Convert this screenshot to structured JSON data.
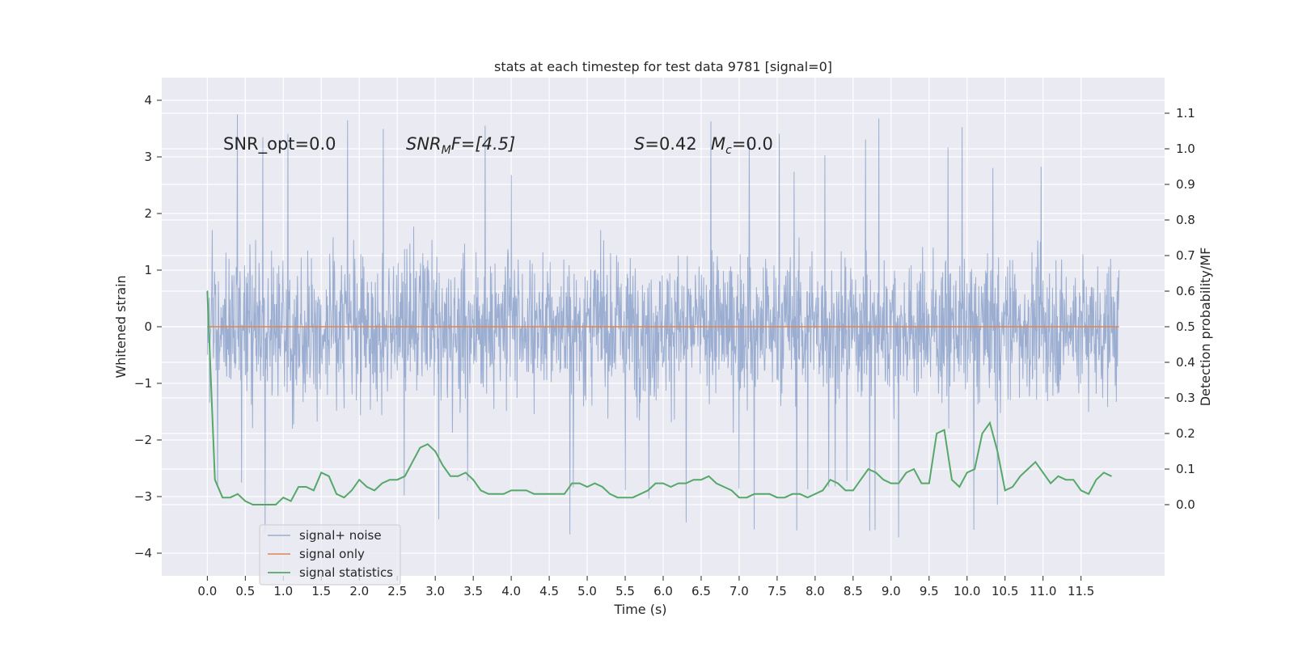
{
  "chart_data": {
    "type": "line",
    "title": "stats at each timestep for test data 9781 [signal=0]",
    "xlabel": "Time (s)",
    "ylabel": "Whitened strain",
    "ylabel_right": "Detection probability/MF",
    "xlim": [
      -0.6,
      12.6
    ],
    "ylim": [
      -4.4,
      4.4
    ],
    "ylim_right": [
      -0.2,
      1.2
    ],
    "grid": true,
    "legend_position": "lower-left",
    "x_ticks": [
      "0.0",
      "0.5",
      "1.0",
      "1.5",
      "2.0",
      "2.5",
      "3.0",
      "3.5",
      "4.0",
      "4.5",
      "5.0",
      "5.5",
      "6.0",
      "6.5",
      "7.0",
      "7.5",
      "8.0",
      "8.5",
      "9.0",
      "9.5",
      "10.0",
      "10.5",
      "11.0",
      "11.5"
    ],
    "y_ticks": [
      "4",
      "3",
      "2",
      "1",
      "0",
      "−1",
      "−2",
      "−3",
      "−4"
    ],
    "y_ticks_right": [
      "1.1",
      "1.0",
      "0.9",
      "0.8",
      "0.7",
      "0.6",
      "0.5",
      "0.4",
      "0.3",
      "0.2",
      "0.1",
      "0.0"
    ],
    "annotations": {
      "snr_opt": "SNR_opt=0.0",
      "snr_mf": "SNR",
      "snr_mf_sub": "M",
      "snr_mf_rest": "F=[4.5]",
      "stat_s": "S",
      "stat_s_value": "=0.42",
      "mc": "M",
      "mc_sub": "c",
      "mc_value": "=0.0"
    },
    "series": [
      {
        "name": "signal+ noise",
        "color": "#4c72b0",
        "alpha": 0.5,
        "kind": "noise",
        "x_range": [
          0.0,
          12.0
        ],
        "envelope": {
          "core": 1.35,
          "typical_peak": 2.1,
          "spike_max": 3.9,
          "spike_min": -4.0
        }
      },
      {
        "name": "signal only",
        "color": "#dd8452",
        "x": [
          0.0,
          12.0
        ],
        "y": [
          0.0,
          0.0
        ]
      },
      {
        "name": "signal statistics",
        "color": "#55a868",
        "axis": "right",
        "x": [
          0.0,
          0.1,
          0.2,
          0.3,
          0.4,
          0.5,
          0.6,
          0.7,
          0.8,
          0.9,
          1.0,
          1.1,
          1.2,
          1.3,
          1.4,
          1.5,
          1.6,
          1.7,
          1.8,
          1.9,
          2.0,
          2.1,
          2.2,
          2.3,
          2.4,
          2.5,
          2.6,
          2.7,
          2.8,
          2.9,
          3.0,
          3.1,
          3.2,
          3.3,
          3.4,
          3.5,
          3.6,
          3.7,
          3.8,
          3.9,
          4.0,
          4.1,
          4.2,
          4.3,
          4.4,
          4.5,
          4.6,
          4.7,
          4.8,
          4.9,
          5.0,
          5.1,
          5.2,
          5.3,
          5.4,
          5.5,
          5.6,
          5.7,
          5.8,
          5.9,
          6.0,
          6.1,
          6.2,
          6.3,
          6.4,
          6.5,
          6.6,
          6.7,
          6.8,
          6.9,
          7.0,
          7.1,
          7.2,
          7.3,
          7.4,
          7.5,
          7.6,
          7.7,
          7.8,
          7.9,
          8.0,
          8.1,
          8.2,
          8.3,
          8.4,
          8.5,
          8.6,
          8.7,
          8.8,
          8.9,
          9.0,
          9.1,
          9.2,
          9.3,
          9.4,
          9.5,
          9.6,
          9.7,
          9.8,
          9.9,
          10.0,
          10.1,
          10.2,
          10.3,
          10.4,
          10.5,
          10.6,
          10.7,
          10.8,
          10.9,
          11.0,
          11.1,
          11.2,
          11.3,
          11.4,
          11.5,
          11.6,
          11.7,
          11.8,
          11.9
        ],
        "y": [
          0.6,
          0.07,
          0.02,
          0.02,
          0.03,
          0.01,
          0.0,
          0.0,
          0.0,
          0.0,
          0.02,
          0.01,
          0.05,
          0.05,
          0.04,
          0.09,
          0.08,
          0.03,
          0.02,
          0.04,
          0.07,
          0.05,
          0.04,
          0.06,
          0.07,
          0.07,
          0.08,
          0.12,
          0.16,
          0.17,
          0.15,
          0.11,
          0.08,
          0.08,
          0.09,
          0.07,
          0.04,
          0.03,
          0.03,
          0.03,
          0.04,
          0.04,
          0.04,
          0.03,
          0.03,
          0.03,
          0.03,
          0.03,
          0.06,
          0.06,
          0.05,
          0.06,
          0.05,
          0.03,
          0.02,
          0.02,
          0.02,
          0.03,
          0.04,
          0.06,
          0.06,
          0.05,
          0.06,
          0.06,
          0.07,
          0.07,
          0.08,
          0.06,
          0.05,
          0.04,
          0.02,
          0.02,
          0.03,
          0.03,
          0.03,
          0.02,
          0.02,
          0.03,
          0.03,
          0.02,
          0.03,
          0.04,
          0.07,
          0.06,
          0.04,
          0.04,
          0.07,
          0.1,
          0.09,
          0.07,
          0.06,
          0.06,
          0.09,
          0.1,
          0.06,
          0.06,
          0.2,
          0.21,
          0.07,
          0.05,
          0.09,
          0.1,
          0.2,
          0.23,
          0.15,
          0.04,
          0.05,
          0.08,
          0.1,
          0.12,
          0.09,
          0.06,
          0.08,
          0.07,
          0.07,
          0.04,
          0.03,
          0.07,
          0.09,
          0.08
        ]
      }
    ]
  }
}
